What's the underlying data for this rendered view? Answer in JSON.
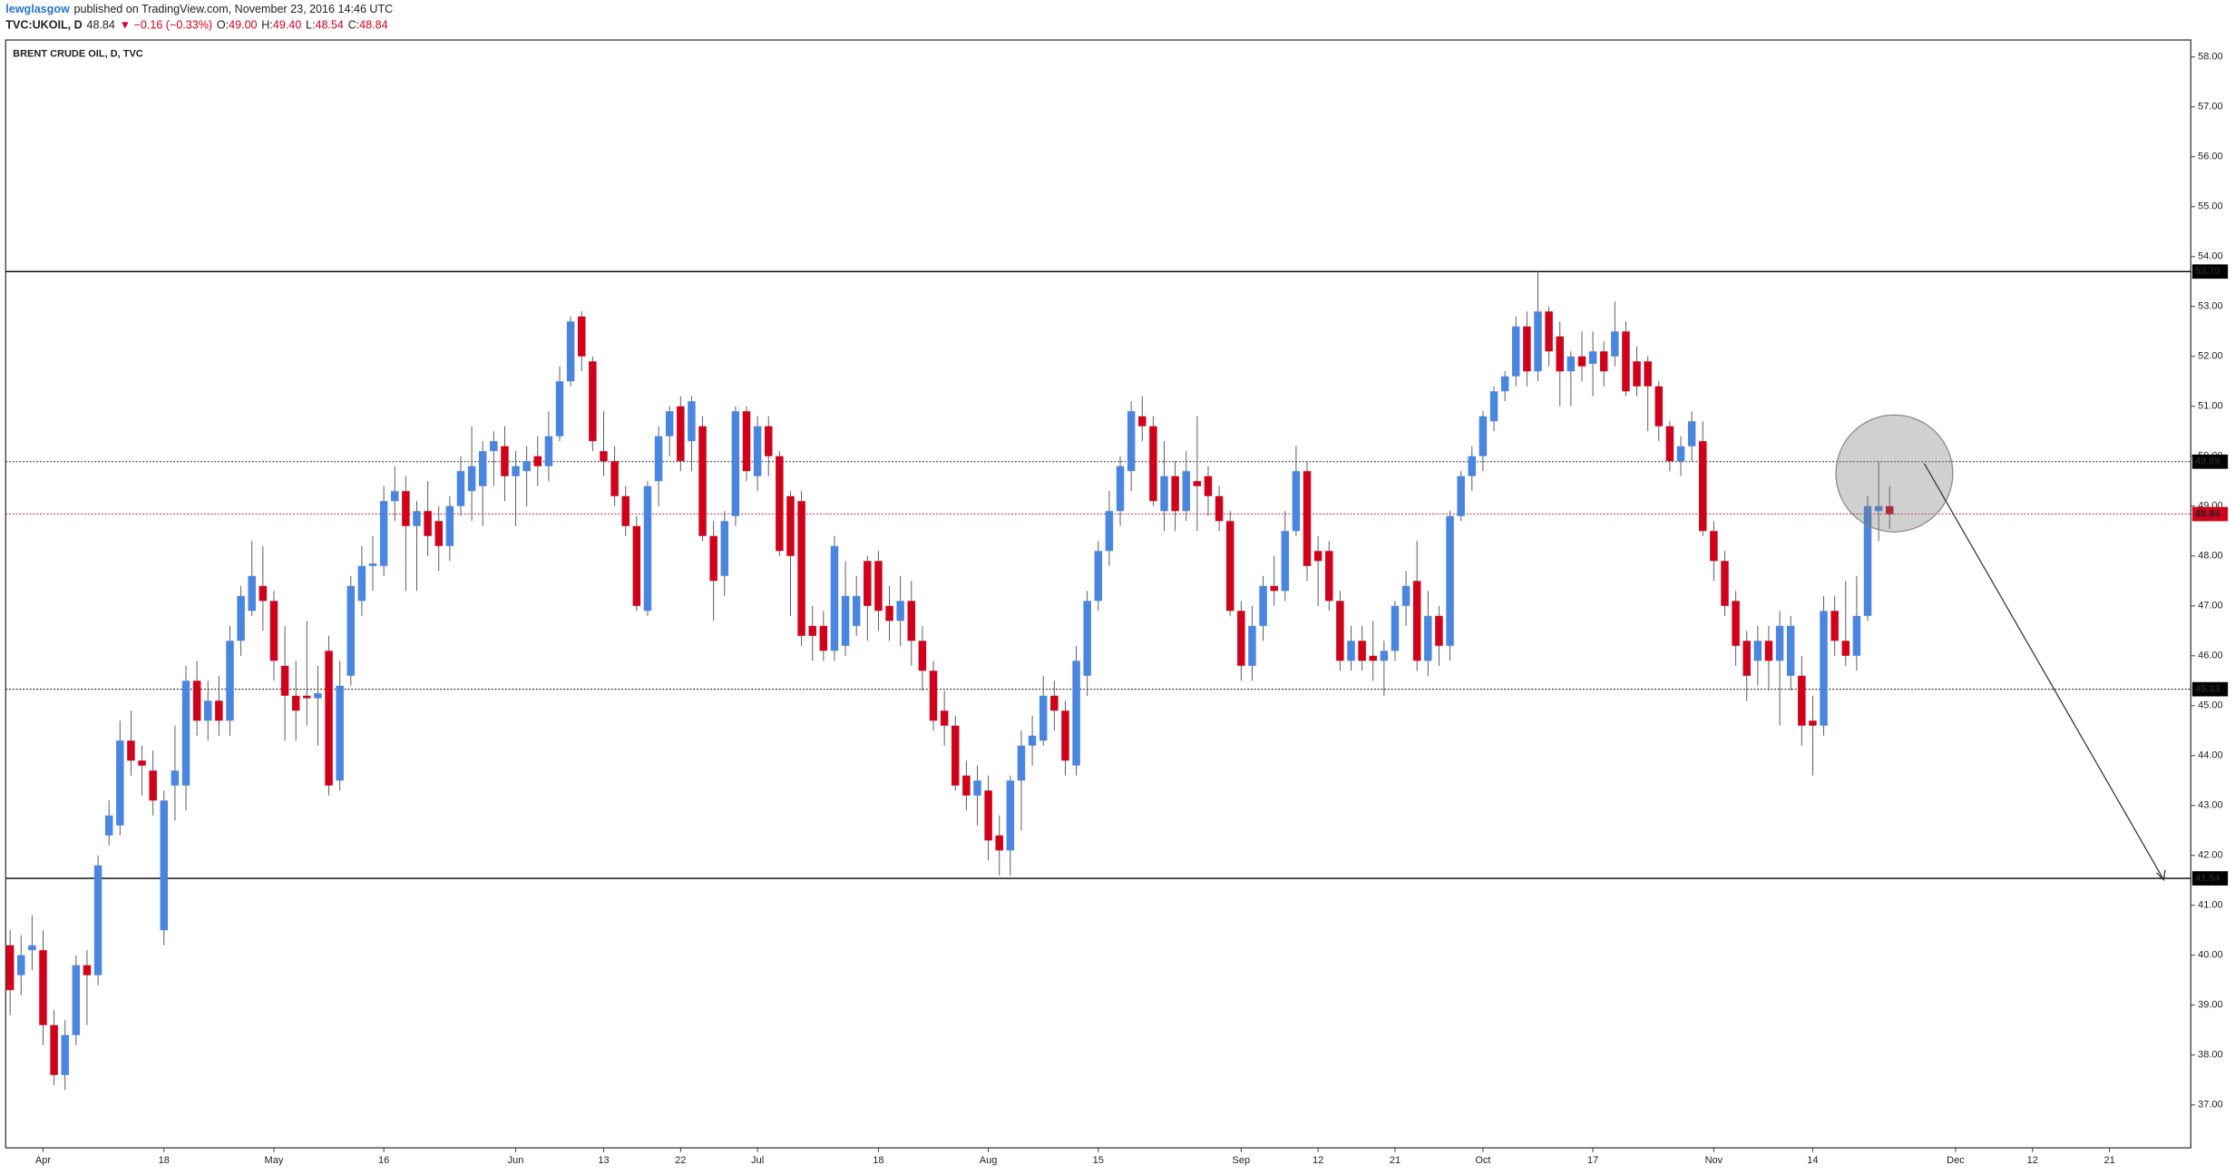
{
  "header": {
    "author": "lewglasgow",
    "published": "published on TradingView.com, November 23, 2016 14:46 UTC",
    "symbol": "TVC:UKOIL, D",
    "last": "48.84",
    "change": "▼ −0.16 (−0.33%)",
    "ohlc": [
      {
        "key": "O:",
        "value": "49.00"
      },
      {
        "key": "H:",
        "value": "49.40"
      },
      {
        "key": "L:",
        "value": "48.54"
      },
      {
        "key": "C:",
        "value": "48.84"
      }
    ]
  },
  "chart_data": {
    "type": "candlestick",
    "title": "BRENT CRUDE OIL, D, TVC",
    "up_color": "#4a86e0",
    "down_color": "#d0021b",
    "candles": [
      [
        40.2,
        40.5,
        38.8,
        39.3
      ],
      [
        39.6,
        40.4,
        39.2,
        40.0
      ],
      [
        40.1,
        40.8,
        39.7,
        40.2
      ],
      [
        40.1,
        40.5,
        38.2,
        38.6
      ],
      [
        38.6,
        38.9,
        37.4,
        37.6
      ],
      [
        37.6,
        38.7,
        37.3,
        38.4
      ],
      [
        38.4,
        40.0,
        38.2,
        39.8
      ],
      [
        39.8,
        40.1,
        38.6,
        39.6
      ],
      [
        39.6,
        42.0,
        39.4,
        41.8
      ],
      [
        42.4,
        43.1,
        42.2,
        42.8
      ],
      [
        42.6,
        44.7,
        42.4,
        44.3
      ],
      [
        44.3,
        44.9,
        43.6,
        43.9
      ],
      [
        43.9,
        44.2,
        43.2,
        43.8
      ],
      [
        43.7,
        44.1,
        42.8,
        43.1
      ],
      [
        40.5,
        43.3,
        40.2,
        43.1
      ],
      [
        43.4,
        44.6,
        42.7,
        43.7
      ],
      [
        43.4,
        45.8,
        42.9,
        45.5
      ],
      [
        45.5,
        45.9,
        44.4,
        44.7
      ],
      [
        44.7,
        45.5,
        44.3,
        45.1
      ],
      [
        45.1,
        45.6,
        44.4,
        44.7
      ],
      [
        44.7,
        46.6,
        44.4,
        46.3
      ],
      [
        46.3,
        47.4,
        46.0,
        47.2
      ],
      [
        46.9,
        48.3,
        46.8,
        47.6
      ],
      [
        47.4,
        48.2,
        46.5,
        47.1
      ],
      [
        47.1,
        47.3,
        45.5,
        45.9
      ],
      [
        45.8,
        46.6,
        44.3,
        45.2
      ],
      [
        45.2,
        45.9,
        44.3,
        44.9
      ],
      [
        45.2,
        46.7,
        44.6,
        45.15
      ],
      [
        45.15,
        45.8,
        44.2,
        45.25
      ],
      [
        46.1,
        46.4,
        43.2,
        43.4
      ],
      [
        43.5,
        45.9,
        43.3,
        45.4
      ],
      [
        45.6,
        47.6,
        45.4,
        47.4
      ],
      [
        47.1,
        48.2,
        46.8,
        47.8
      ],
      [
        47.8,
        48.4,
        47.3,
        47.85
      ],
      [
        47.8,
        49.4,
        47.6,
        49.1
      ],
      [
        49.1,
        49.8,
        48.7,
        49.3
      ],
      [
        49.3,
        49.6,
        47.3,
        48.6
      ],
      [
        48.6,
        49.1,
        47.3,
        48.9
      ],
      [
        48.9,
        49.5,
        48.0,
        48.4
      ],
      [
        48.7,
        49.0,
        47.7,
        48.2
      ],
      [
        48.2,
        49.2,
        47.9,
        49.0
      ],
      [
        49.0,
        50.0,
        48.8,
        49.7
      ],
      [
        49.3,
        50.6,
        48.7,
        49.8
      ],
      [
        49.4,
        50.3,
        48.6,
        50.1
      ],
      [
        50.1,
        50.5,
        49.4,
        50.3
      ],
      [
        50.2,
        50.6,
        49.1,
        49.6
      ],
      [
        49.6,
        50.1,
        48.6,
        49.8
      ],
      [
        49.7,
        50.2,
        49.0,
        49.9
      ],
      [
        50.0,
        50.4,
        49.4,
        49.8
      ],
      [
        49.8,
        50.9,
        49.5,
        50.4
      ],
      [
        50.4,
        51.8,
        50.3,
        51.5
      ],
      [
        51.5,
        52.8,
        51.4,
        52.7
      ],
      [
        52.8,
        52.9,
        51.7,
        52.0
      ],
      [
        51.9,
        52.0,
        50.1,
        50.3
      ],
      [
        50.1,
        50.9,
        49.6,
        49.9
      ],
      [
        49.9,
        50.2,
        49.0,
        49.2
      ],
      [
        49.2,
        49.4,
        48.4,
        48.6
      ],
      [
        48.6,
        48.8,
        46.9,
        47.0
      ],
      [
        46.9,
        49.5,
        46.8,
        49.4
      ],
      [
        49.5,
        50.6,
        49.0,
        50.4
      ],
      [
        50.4,
        51.0,
        50.0,
        50.9
      ],
      [
        51.0,
        51.2,
        49.7,
        49.9
      ],
      [
        50.3,
        51.2,
        49.7,
        51.1
      ],
      [
        50.6,
        50.8,
        48.3,
        48.4
      ],
      [
        48.4,
        48.7,
        46.7,
        47.5
      ],
      [
        47.6,
        48.9,
        47.2,
        48.7
      ],
      [
        48.8,
        51.0,
        48.6,
        50.9
      ],
      [
        50.9,
        51.0,
        49.5,
        49.7
      ],
      [
        49.6,
        50.8,
        49.3,
        50.6
      ],
      [
        50.6,
        50.8,
        49.6,
        50.0
      ],
      [
        50.0,
        50.1,
        48.0,
        48.1
      ],
      [
        49.2,
        49.3,
        46.8,
        48.0
      ],
      [
        49.1,
        49.3,
        46.2,
        46.4
      ],
      [
        46.6,
        47.0,
        45.9,
        46.4
      ],
      [
        46.6,
        46.9,
        45.9,
        46.1
      ],
      [
        46.1,
        48.4,
        45.9,
        48.2
      ],
      [
        46.2,
        47.9,
        46.0,
        47.2
      ],
      [
        46.6,
        47.6,
        46.4,
        47.2
      ],
      [
        47.9,
        48.0,
        46.3,
        47.0
      ],
      [
        47.9,
        48.1,
        46.5,
        46.9
      ],
      [
        47.0,
        47.4,
        46.3,
        46.7
      ],
      [
        46.7,
        47.6,
        46.2,
        47.1
      ],
      [
        47.1,
        47.5,
        45.8,
        46.3
      ],
      [
        46.3,
        46.6,
        45.3,
        45.7
      ],
      [
        45.7,
        45.9,
        44.5,
        44.7
      ],
      [
        44.9,
        45.3,
        44.2,
        44.6
      ],
      [
        44.6,
        44.8,
        43.3,
        43.4
      ],
      [
        43.6,
        43.9,
        42.9,
        43.2
      ],
      [
        43.2,
        43.8,
        42.6,
        43.5
      ],
      [
        43.3,
        43.6,
        41.9,
        42.3
      ],
      [
        42.4,
        42.8,
        41.6,
        42.1
      ],
      [
        42.1,
        43.6,
        41.6,
        43.5
      ],
      [
        43.5,
        44.5,
        42.5,
        44.2
      ],
      [
        44.2,
        44.8,
        43.8,
        44.4
      ],
      [
        44.3,
        45.6,
        44.2,
        45.2
      ],
      [
        45.2,
        45.5,
        44.5,
        44.9
      ],
      [
        44.9,
        45.1,
        43.6,
        43.9
      ],
      [
        43.8,
        46.2,
        43.6,
        45.9
      ],
      [
        45.6,
        47.3,
        45.2,
        47.1
      ],
      [
        47.1,
        48.3,
        46.9,
        48.1
      ],
      [
        48.1,
        49.3,
        47.8,
        48.9
      ],
      [
        48.9,
        50.0,
        48.6,
        49.8
      ],
      [
        49.7,
        51.1,
        49.3,
        50.9
      ],
      [
        50.8,
        51.2,
        50.3,
        50.6
      ],
      [
        50.6,
        50.8,
        49.0,
        49.1
      ],
      [
        48.9,
        50.3,
        48.5,
        49.6
      ],
      [
        49.6,
        49.9,
        48.5,
        48.9
      ],
      [
        48.9,
        50.1,
        48.7,
        49.7
      ],
      [
        49.5,
        50.8,
        48.5,
        49.4
      ],
      [
        49.6,
        49.8,
        48.8,
        49.2
      ],
      [
        49.2,
        49.4,
        48.5,
        48.7
      ],
      [
        48.7,
        48.9,
        46.8,
        46.9
      ],
      [
        46.9,
        47.1,
        45.5,
        45.8
      ],
      [
        45.8,
        47.0,
        45.5,
        46.6
      ],
      [
        46.6,
        47.6,
        46.3,
        47.4
      ],
      [
        47.4,
        48.0,
        47.0,
        47.3
      ],
      [
        47.3,
        48.9,
        47.1,
        48.5
      ],
      [
        48.5,
        50.2,
        48.4,
        49.7
      ],
      [
        49.7,
        49.9,
        47.5,
        47.8
      ],
      [
        48.1,
        48.4,
        47.0,
        47.9
      ],
      [
        48.1,
        48.3,
        46.9,
        47.1
      ],
      [
        47.1,
        47.3,
        45.7,
        45.9
      ],
      [
        45.9,
        46.6,
        45.7,
        46.3
      ],
      [
        46.3,
        46.6,
        45.7,
        45.9
      ],
      [
        46.0,
        46.7,
        45.5,
        45.9
      ],
      [
        45.9,
        46.3,
        45.2,
        46.1
      ],
      [
        46.1,
        47.1,
        45.9,
        47.0
      ],
      [
        47.0,
        47.7,
        46.6,
        47.4
      ],
      [
        47.5,
        48.3,
        45.7,
        45.9
      ],
      [
        45.9,
        47.3,
        45.6,
        46.8
      ],
      [
        46.8,
        47.0,
        45.8,
        46.2
      ],
      [
        46.2,
        48.9,
        45.9,
        48.8
      ],
      [
        48.8,
        49.7,
        48.7,
        49.6
      ],
      [
        49.6,
        50.2,
        49.3,
        50.0
      ],
      [
        50.0,
        50.9,
        49.7,
        50.8
      ],
      [
        50.7,
        51.4,
        50.5,
        51.3
      ],
      [
        51.3,
        51.7,
        51.1,
        51.6
      ],
      [
        51.6,
        52.8,
        51.4,
        52.6
      ],
      [
        52.6,
        52.9,
        51.4,
        51.7
      ],
      [
        51.7,
        53.7,
        51.5,
        52.9
      ],
      [
        52.9,
        53.0,
        51.8,
        52.1
      ],
      [
        52.4,
        52.7,
        51.0,
        51.7
      ],
      [
        51.7,
        52.1,
        51.0,
        52.0
      ],
      [
        52.0,
        52.5,
        51.5,
        51.8
      ],
      [
        51.85,
        52.5,
        51.2,
        52.1
      ],
      [
        52.1,
        52.3,
        51.4,
        51.7
      ],
      [
        52.0,
        53.1,
        51.8,
        52.5
      ],
      [
        52.5,
        52.7,
        51.2,
        51.3
      ],
      [
        51.9,
        52.2,
        51.2,
        51.4
      ],
      [
        51.9,
        52.0,
        50.5,
        51.4
      ],
      [
        51.4,
        51.5,
        50.3,
        50.6
      ],
      [
        50.6,
        50.7,
        49.7,
        49.9
      ],
      [
        49.9,
        50.4,
        49.6,
        50.2
      ],
      [
        50.2,
        50.9,
        49.9,
        50.7
      ],
      [
        50.3,
        50.7,
        48.4,
        48.5
      ],
      [
        48.5,
        48.7,
        47.5,
        47.9
      ],
      [
        47.9,
        48.1,
        46.8,
        47.0
      ],
      [
        47.1,
        47.3,
        45.8,
        46.2
      ],
      [
        46.3,
        46.5,
        45.1,
        45.6
      ],
      [
        45.9,
        46.6,
        45.4,
        46.3
      ],
      [
        46.3,
        46.6,
        45.3,
        45.9
      ],
      [
        45.9,
        46.9,
        44.6,
        46.6
      ],
      [
        45.6,
        46.8,
        45.3,
        46.6
      ],
      [
        45.6,
        46.0,
        44.2,
        44.6
      ],
      [
        44.7,
        45.2,
        43.6,
        44.6
      ],
      [
        44.6,
        47.2,
        44.4,
        46.9
      ],
      [
        46.9,
        47.2,
        46.0,
        46.3
      ],
      [
        46.3,
        47.5,
        45.8,
        46.0
      ],
      [
        46.0,
        47.6,
        45.7,
        46.8
      ],
      [
        46.8,
        49.2,
        46.7,
        49.0
      ],
      [
        48.9,
        49.9,
        48.3,
        49.0
      ],
      [
        49.0,
        49.4,
        48.54,
        48.84
      ]
    ],
    "xlim": [
      -0.4,
      198.4
    ],
    "xticks": [
      {
        "value": 3,
        "label": "Apr"
      },
      {
        "value": 14,
        "label": "18"
      },
      {
        "value": 24,
        "label": "May"
      },
      {
        "value": 34,
        "label": "16"
      },
      {
        "value": 46,
        "label": "Jun"
      },
      {
        "value": 54,
        "label": "13"
      },
      {
        "value": 61,
        "label": "22"
      },
      {
        "value": 68,
        "label": "Jul"
      },
      {
        "value": 79,
        "label": "18"
      },
      {
        "value": 89,
        "label": "Aug"
      },
      {
        "value": 99,
        "label": "15"
      },
      {
        "value": 112,
        "label": "Sep"
      },
      {
        "value": 119,
        "label": "12"
      },
      {
        "value": 126,
        "label": "21"
      },
      {
        "value": 134,
        "label": "Oct"
      },
      {
        "value": 144,
        "label": "17"
      },
      {
        "value": 155,
        "label": "Nov"
      },
      {
        "value": 164,
        "label": "14"
      },
      {
        "value": 177,
        "label": "Dec"
      },
      {
        "value": 184,
        "label": "12"
      },
      {
        "value": 191,
        "label": "21"
      }
    ],
    "ylim": [
      36.14,
      58.34
    ],
    "yticks": [
      {
        "value": 37,
        "label": "37.00"
      },
      {
        "value": 38,
        "label": "38.00"
      },
      {
        "value": 39,
        "label": "39.00"
      },
      {
        "value": 40,
        "label": "40.00"
      },
      {
        "value": 41,
        "label": "41.00"
      },
      {
        "value": 42,
        "label": "42.00"
      },
      {
        "value": 43,
        "label": "43.00"
      },
      {
        "value": 44,
        "label": "44.00"
      },
      {
        "value": 45,
        "label": "45.00"
      },
      {
        "value": 46,
        "label": "46.00"
      },
      {
        "value": 47,
        "label": "47.00"
      },
      {
        "value": 48,
        "label": "48.00"
      },
      {
        "value": 49,
        "label": "49.00"
      },
      {
        "value": 50,
        "label": "50.00"
      },
      {
        "value": 51,
        "label": "51.00"
      },
      {
        "value": 52,
        "label": "52.00"
      },
      {
        "value": 53,
        "label": "53.00"
      },
      {
        "value": 54,
        "label": "54.00"
      },
      {
        "value": 55,
        "label": "55.00"
      },
      {
        "value": 56,
        "label": "56.00"
      },
      {
        "value": 57,
        "label": "57.00"
      },
      {
        "value": 58,
        "label": "58.00"
      }
    ],
    "levels": [
      {
        "value": 53.7,
        "label": "53.70",
        "style": "solid",
        "color": "#000000"
      },
      {
        "value": 49.89,
        "label": "49.89",
        "style": "dotted",
        "color": "#000000"
      },
      {
        "value": 48.84,
        "label": "48.84",
        "style": "dotted",
        "color": "#d0021b"
      },
      {
        "value": 45.33,
        "label": "45.33",
        "style": "dotted",
        "color": "#000000"
      },
      {
        "value": 41.54,
        "label": "41.54",
        "style": "solid",
        "color": "#000000"
      }
    ]
  }
}
